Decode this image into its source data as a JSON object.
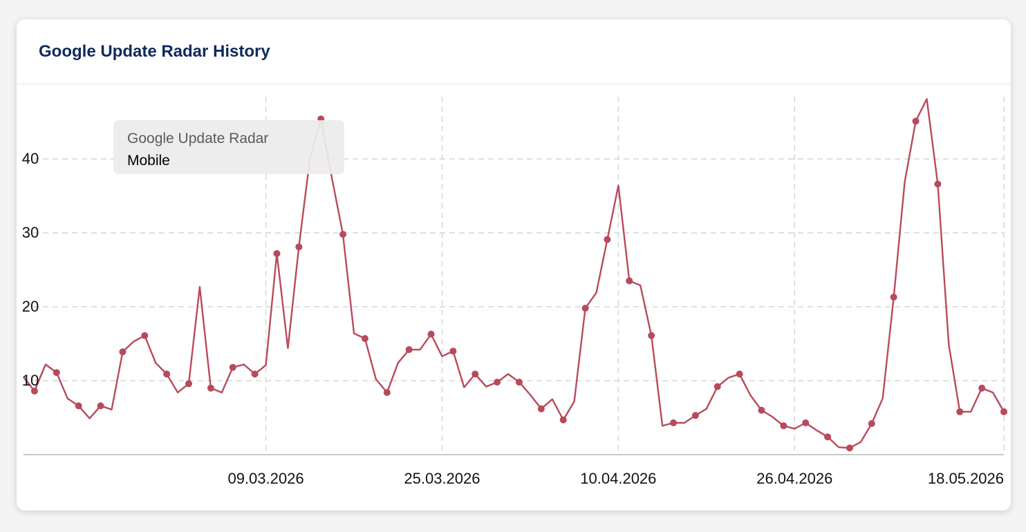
{
  "card": {
    "title": "Google Update Radar History"
  },
  "tooltip": {
    "title": "Google Update Radar",
    "series": "Mobile"
  },
  "colors": {
    "line": "#b84a5a",
    "title": "#0f2a5c",
    "grid": "#d6d6d6",
    "axis": "#c8c8c8"
  },
  "chart_data": {
    "type": "line",
    "title": "Google Update Radar History",
    "xlabel": "",
    "ylabel": "",
    "ylim": [
      0,
      49
    ],
    "yticks": [
      10,
      20,
      30,
      40
    ],
    "xticks": [
      "09.03.2026",
      "25.03.2026",
      "10.04.2026",
      "26.04.2026",
      "18.05.2026"
    ],
    "grid": true,
    "legend": "none",
    "series": [
      {
        "name": "Mobile",
        "values": [
          10.5,
          8.6,
          12.2,
          11.1,
          7.6,
          6.6,
          4.9,
          6.6,
          6.1,
          13.9,
          15.3,
          16.1,
          12.4,
          10.9,
          8.4,
          9.6,
          22.7,
          9.0,
          8.4,
          11.8,
          12.2,
          10.9,
          12.1,
          27.2,
          14.4,
          28.1,
          40.0,
          45.4,
          37.4,
          29.8,
          16.4,
          15.7,
          10.2,
          8.4,
          12.4,
          14.2,
          14.2,
          16.3,
          13.3,
          14.0,
          9.1,
          10.9,
          9.2,
          9.8,
          10.9,
          9.8,
          8.1,
          6.2,
          7.5,
          4.7,
          7.2,
          19.8,
          21.9,
          29.1,
          36.4,
          23.5,
          22.9,
          16.1,
          3.9,
          4.3,
          4.3,
          5.3,
          6.2,
          9.2,
          10.4,
          10.9,
          8.0,
          6.0,
          5.1,
          3.9,
          3.5,
          4.3,
          3.3,
          2.4,
          1.0,
          0.9,
          1.7,
          4.2,
          7.6,
          21.3,
          36.9,
          45.1,
          48.1,
          36.6,
          14.9,
          5.8,
          5.8,
          9.0,
          8.4,
          5.8
        ],
        "markers": [
          1,
          3,
          5,
          7,
          9,
          11,
          13,
          15,
          17,
          19,
          21,
          23,
          25,
          27,
          29,
          31,
          33,
          35,
          37,
          39,
          41,
          43,
          45,
          47,
          49,
          51,
          53,
          55,
          57,
          59,
          61,
          63,
          65,
          67,
          69,
          71,
          73,
          75,
          77,
          79,
          81,
          83,
          85,
          87,
          89
        ]
      }
    ]
  }
}
